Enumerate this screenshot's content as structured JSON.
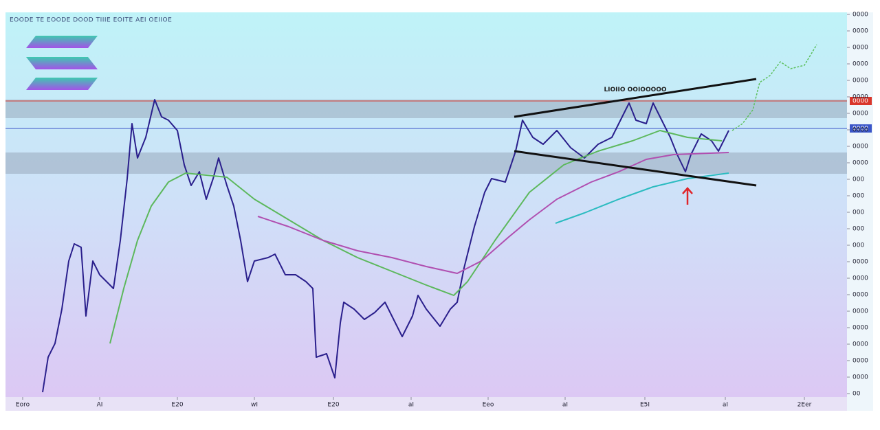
{
  "chart_data": {
    "type": "line",
    "title": "EOODE TE EOODE DOOD TIIIE EOITE AEI OEIIOE",
    "annotation": "LIOIIO OOIOOOOO",
    "xlim": [
      0,
      122
    ],
    "ylim": [
      0,
      55.2
    ],
    "xticks": [
      {
        "value": 2.3,
        "label": "Eoro"
      },
      {
        "value": 13.5,
        "label": "AI"
      },
      {
        "value": 24.8,
        "label": "E20"
      },
      {
        "value": 36.0,
        "label": "wI"
      },
      {
        "value": 47.5,
        "label": "E20"
      },
      {
        "value": 58.8,
        "label": "aI"
      },
      {
        "value": 70.0,
        "label": "Eeo"
      },
      {
        "value": 81.2,
        "label": "aI"
      },
      {
        "value": 92.8,
        "label": "E5I"
      },
      {
        "value": 104.5,
        "label": "aI"
      },
      {
        "value": 116.0,
        "label": "2Eer"
      }
    ],
    "yticks": [
      {
        "value": 0,
        "label": "00"
      },
      {
        "value": 2.4,
        "label": "0000"
      },
      {
        "value": 4.8,
        "label": "0000"
      },
      {
        "value": 7.2,
        "label": "0000"
      },
      {
        "value": 9.6,
        "label": "0000"
      },
      {
        "value": 12.0,
        "label": "0000"
      },
      {
        "value": 14.4,
        "label": "0000"
      },
      {
        "value": 16.8,
        "label": "0000"
      },
      {
        "value": 19.2,
        "label": "0000"
      },
      {
        "value": 21.6,
        "label": "000"
      },
      {
        "value": 24.0,
        "label": "000"
      },
      {
        "value": 26.4,
        "label": "000"
      },
      {
        "value": 28.8,
        "label": "000"
      },
      {
        "value": 31.2,
        "label": "000"
      },
      {
        "value": 33.6,
        "label": "0000"
      },
      {
        "value": 36.0,
        "label": "0000"
      },
      {
        "value": 38.4,
        "label": "0000"
      },
      {
        "value": 40.8,
        "label": "0000"
      },
      {
        "value": 43.2,
        "label": "0000"
      },
      {
        "value": 45.6,
        "label": "0000"
      },
      {
        "value": 48.0,
        "label": "0000"
      },
      {
        "value": 50.4,
        "label": "0000"
      },
      {
        "value": 52.8,
        "label": "0000"
      },
      {
        "value": 55.2,
        "label": "0000"
      }
    ],
    "zones": [
      [
        40.1,
        42.8
      ],
      [
        32.0,
        35.1
      ]
    ],
    "hlines": [
      {
        "value": 42.6,
        "color": "#d9362b",
        "label": "0000"
      },
      {
        "value": 38.6,
        "color": "#3a55c8",
        "label": "0000"
      }
    ],
    "trendlines": [
      {
        "x": [
          73.8,
          109
        ],
        "values": [
          40.3,
          45.8
        ]
      },
      {
        "x": [
          73.8,
          109
        ],
        "values": [
          35.3,
          30.3
        ]
      }
    ],
    "arrow": {
      "x": 99,
      "value": 30.3
    },
    "series": [
      {
        "color": "#2a1f8c",
        "x": [
          5.2,
          6.0,
          7.0,
          8.0,
          9.0,
          9.8,
          10.8,
          11.5,
          12.5,
          13.5,
          14.5,
          15.5,
          16.5,
          17.5,
          18.2,
          19.0,
          20.2,
          21.5,
          22.5,
          23.5,
          24.8,
          25.8,
          26.8,
          28.0,
          29.0,
          30.0,
          30.8,
          32.0,
          33.0,
          34.0,
          35.0,
          36.0,
          38.0,
          39.0,
          40.5,
          42.0,
          43.5,
          44.5,
          45.0,
          46.5,
          47.7,
          48.5,
          49.0,
          50.5,
          52.0,
          53.5,
          55.0,
          56.5,
          57.5,
          59.0,
          59.8,
          61.0,
          63.0,
          64.5,
          65.5,
          66.5,
          68.0,
          69.5,
          70.5,
          72.5,
          74.0,
          75.0,
          76.5,
          78.0,
          80.0,
          82.0,
          84.0,
          86.0,
          88.0,
          89.5,
          90.5,
          91.5,
          93.0,
          94.0,
          95.0,
          96.5,
          97.5,
          98.7,
          99.5,
          101.0,
          102.5,
          103.5,
          105.0
        ],
        "values": [
          0.2,
          5.3,
          7.3,
          12.3,
          19.3,
          21.8,
          21.3,
          11.3,
          19.3,
          17.3,
          16.3,
          15.3,
          22.3,
          31.3,
          39.3,
          34.3,
          37.3,
          42.8,
          40.3,
          39.8,
          38.3,
          33.3,
          30.3,
          32.3,
          28.3,
          31.3,
          34.3,
          30.3,
          27.3,
          22.3,
          16.3,
          19.3,
          19.8,
          20.3,
          17.3,
          17.3,
          16.3,
          15.3,
          5.3,
          5.8,
          2.3,
          10.3,
          13.3,
          12.3,
          10.8,
          11.8,
          13.3,
          10.3,
          8.3,
          11.3,
          14.3,
          12.3,
          9.8,
          12.3,
          13.3,
          18.3,
          24.3,
          29.3,
          31.3,
          30.8,
          35.3,
          39.8,
          37.3,
          36.3,
          38.3,
          35.8,
          34.3,
          36.3,
          37.3,
          40.3,
          42.3,
          39.8,
          39.3,
          42.3,
          40.3,
          37.3,
          34.8,
          32.3,
          34.8,
          37.8,
          36.8,
          35.3,
          38.3
        ],
        "width": 2
      },
      {
        "color": "#5cbf5c",
        "x": [
          105.5,
          107,
          108.5,
          109.5,
          111,
          112.5,
          114,
          116,
          117.8
        ],
        "values": [
          38.3,
          39.3,
          41.3,
          45.3,
          46.3,
          48.3,
          47.3,
          47.8,
          50.8
        ],
        "width": 1.5,
        "dashed": true
      },
      {
        "color": "#5cb85c",
        "x": [
          15,
          17,
          19,
          21,
          23.5,
          26,
          29,
          32,
          36,
          41,
          46,
          51,
          56,
          61,
          65,
          67,
          71,
          76,
          81,
          86,
          91,
          95,
          99,
          104
        ],
        "values": [
          7.3,
          15.3,
          22.3,
          27.3,
          30.8,
          32.1,
          31.8,
          31.5,
          28.3,
          25.3,
          22.3,
          19.8,
          17.8,
          15.8,
          14.3,
          16.3,
          22.3,
          29.3,
          33.3,
          35.3,
          36.8,
          38.3,
          37.3,
          36.8
        ],
        "width": 2
      },
      {
        "color": "#b04fb0",
        "x": [
          36.5,
          41,
          46,
          51,
          56,
          61,
          65.5,
          69,
          73,
          76,
          80,
          85,
          89,
          93,
          97,
          105
        ],
        "values": [
          25.8,
          24.3,
          22.3,
          20.8,
          19.8,
          18.5,
          17.5,
          19.3,
          22.8,
          25.3,
          28.3,
          30.8,
          32.3,
          34.1,
          34.8,
          35.1
        ],
        "width": 2
      },
      {
        "color": "#2bbbc0",
        "x": [
          79.8,
          84,
          89,
          94,
          99,
          105
        ],
        "values": [
          24.8,
          26.3,
          28.3,
          30.1,
          31.3,
          32.1
        ],
        "width": 2
      }
    ]
  }
}
